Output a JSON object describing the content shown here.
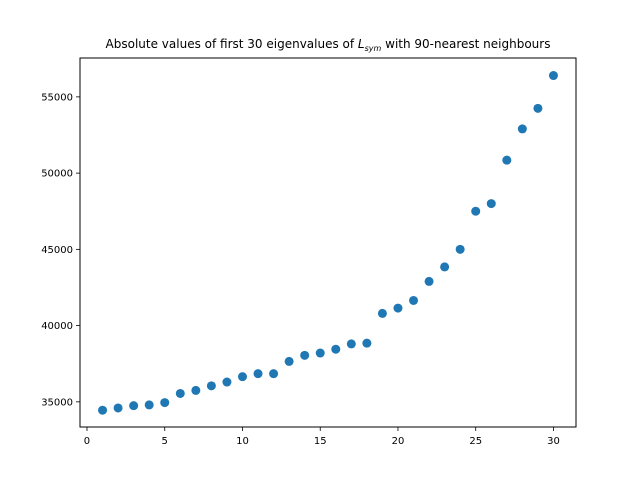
{
  "chart_data": {
    "type": "scatter",
    "title_prefix": "Absolute values of first 30 eigenvalues of ",
    "title_math_base": "L",
    "title_math_sub": "sym",
    "title_suffix": " with 90-nearest neighbours",
    "xlabel": "",
    "ylabel": "",
    "xlim": [
      -0.45,
      31.45
    ],
    "ylim": [
      33350,
      57550
    ],
    "x_ticks": [
      0,
      5,
      10,
      15,
      20,
      25,
      30
    ],
    "y_ticks": [
      35000,
      40000,
      45000,
      50000,
      55000
    ],
    "grid": false,
    "legend": "none",
    "marker_color": "#1f77b4",
    "x": [
      1,
      2,
      3,
      4,
      5,
      6,
      7,
      8,
      9,
      10,
      11,
      12,
      13,
      14,
      15,
      16,
      17,
      18,
      19,
      20,
      21,
      22,
      23,
      24,
      25,
      26,
      27,
      28,
      29,
      30
    ],
    "y": [
      34450,
      34600,
      34750,
      34800,
      34950,
      35550,
      35750,
      36050,
      36300,
      36650,
      36850,
      36850,
      37650,
      38050,
      38200,
      38450,
      38800,
      38850,
      40800,
      41150,
      41650,
      42900,
      43850,
      45000,
      47500,
      48000,
      50850,
      52900,
      54250,
      56400
    ]
  }
}
